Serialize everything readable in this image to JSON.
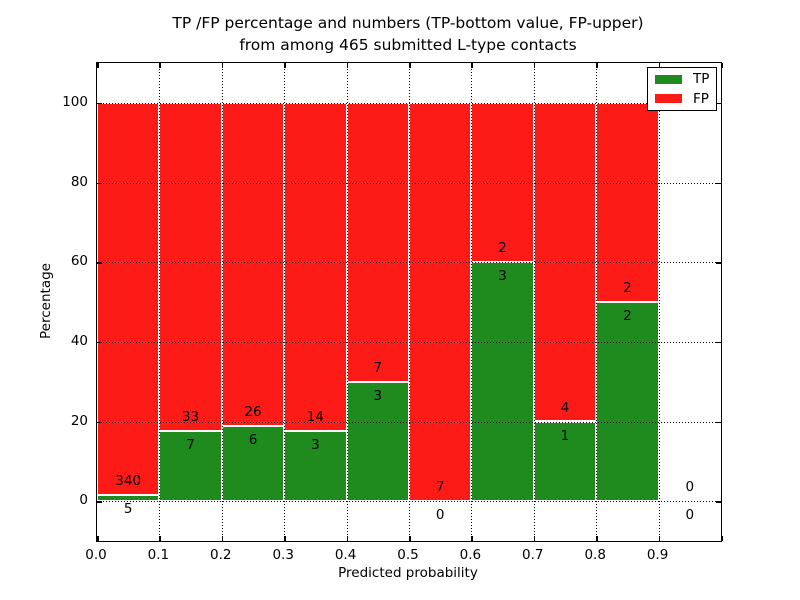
{
  "title": {
    "line1": "TP /FP percentage and numbers (TP-bottom value, FP-upper)",
    "line2": "from among 465 submitted L-type contacts"
  },
  "axes": {
    "xlabel": "Predicted probability",
    "ylabel": "Percentage",
    "x_tick_values": [
      0.0,
      0.1,
      0.2,
      0.3,
      0.4,
      0.5,
      0.6,
      0.7,
      0.8,
      0.9
    ],
    "x_tick_labels": [
      "0.0",
      "0.1",
      "0.2",
      "0.3",
      "0.4",
      "0.5",
      "0.6",
      "0.7",
      "0.8",
      "0.9"
    ],
    "y_tick_values": [
      0,
      20,
      40,
      60,
      80,
      100
    ],
    "y_tick_labels": [
      "0",
      "20",
      "40",
      "60",
      "80",
      "100"
    ],
    "xlim": [
      0.0,
      1.0
    ],
    "ylim": [
      -10,
      110
    ],
    "grid": "dotted"
  },
  "legend": {
    "position": "upper-right",
    "items": [
      {
        "label": "TP",
        "color": "#1f8b1f"
      },
      {
        "label": "FP",
        "color": "#fc1b16"
      }
    ]
  },
  "chart_data": {
    "type": "bar",
    "stacked": true,
    "normalized_to_percent": true,
    "bin_width": 0.1,
    "x_bins": [
      0.0,
      0.1,
      0.2,
      0.3,
      0.4,
      0.5,
      0.6,
      0.7,
      0.8,
      0.9
    ],
    "series": [
      {
        "name": "TP",
        "color": "#1f8b1f",
        "values": [
          5,
          7,
          6,
          3,
          3,
          0,
          3,
          1,
          2,
          0
        ]
      },
      {
        "name": "FP",
        "color": "#fc1b16",
        "values": [
          340,
          33,
          26,
          14,
          7,
          7,
          2,
          4,
          2,
          0
        ]
      }
    ],
    "tp_percent_by_bin": [
      1.45,
      17.5,
      18.75,
      17.65,
      30.0,
      0.0,
      60.0,
      20.0,
      50.0,
      null
    ],
    "total_contacts": 465,
    "title": "TP /FP percentage and numbers (TP-bottom value, FP-upper) from among 465 submitted L-type contacts",
    "xlabel": "Predicted probability",
    "ylabel": "Percentage"
  },
  "colors": {
    "tp": "#1f8b1f",
    "fp": "#fc1b16",
    "background": "#ffffff",
    "frame": "#000000"
  }
}
